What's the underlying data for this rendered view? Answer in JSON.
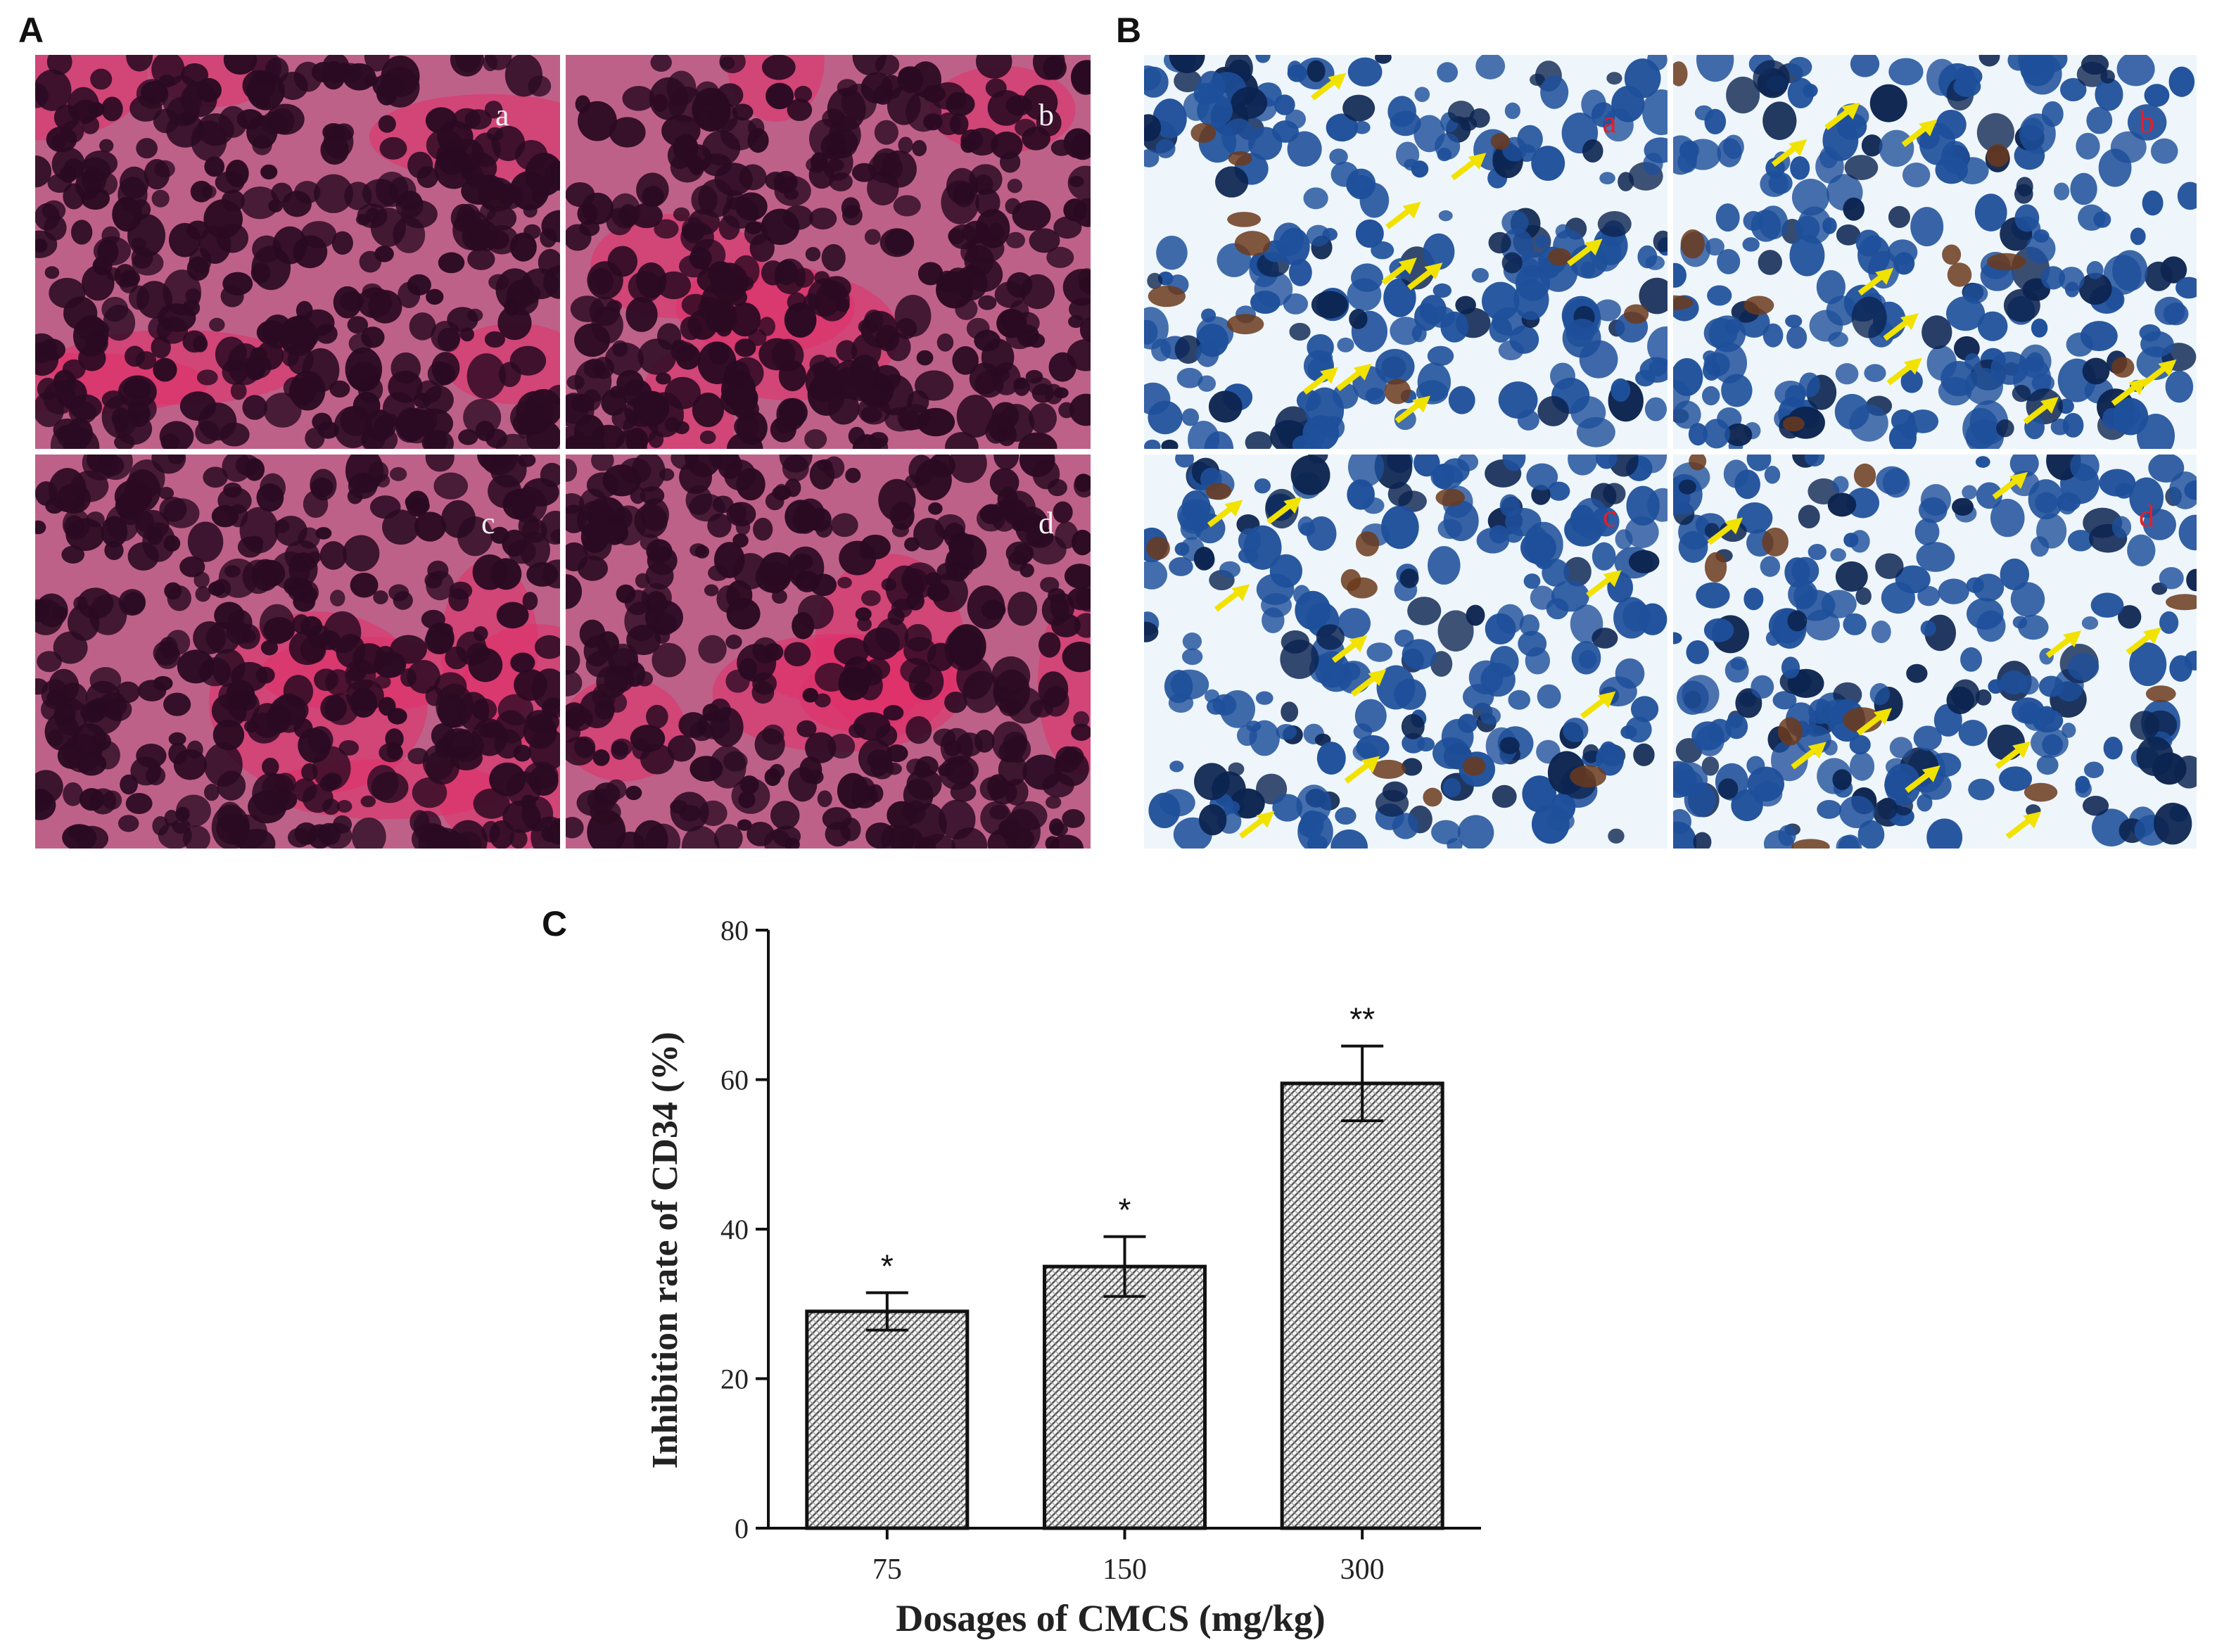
{
  "panels": {
    "A": {
      "letter": "A",
      "image_desc": "H&E stained tumor tissue micrographs",
      "sublabels": [
        "a",
        "b",
        "c",
        "d"
      ],
      "palette": {
        "bg": "#c04a78",
        "cell": "#2a0a22",
        "gap": "#b7e3e3",
        "stroma": "#e0306a"
      }
    },
    "B": {
      "letter": "B",
      "image_desc": "CD34 immunohistochemistry micrographs with yellow arrows marking stained vessels",
      "sublabels": [
        "a",
        "b",
        "c",
        "d"
      ],
      "palette": {
        "bg": "#eef6fb",
        "cell": "#1e4f9a",
        "dark": "#0c2450",
        "brown": "#6b3a1c",
        "arrow": "#f2e200",
        "label": "#e0202a"
      }
    },
    "C": {
      "letter": "C"
    }
  },
  "chart_data": {
    "type": "bar",
    "categories": [
      "75",
      "150",
      "300"
    ],
    "values": [
      29,
      35,
      59.5
    ],
    "errors": [
      2.5,
      4,
      5
    ],
    "significance": [
      "*",
      "*",
      "**"
    ],
    "xlabel": "Dosages of CMCS (mg/kg)",
    "ylabel": "Inhibition rate of  CD34 (%)",
    "ylim": [
      0,
      80
    ],
    "yticks": [
      0,
      20,
      40,
      60,
      80
    ],
    "bar_fill": "hatched gray",
    "grid": false
  }
}
